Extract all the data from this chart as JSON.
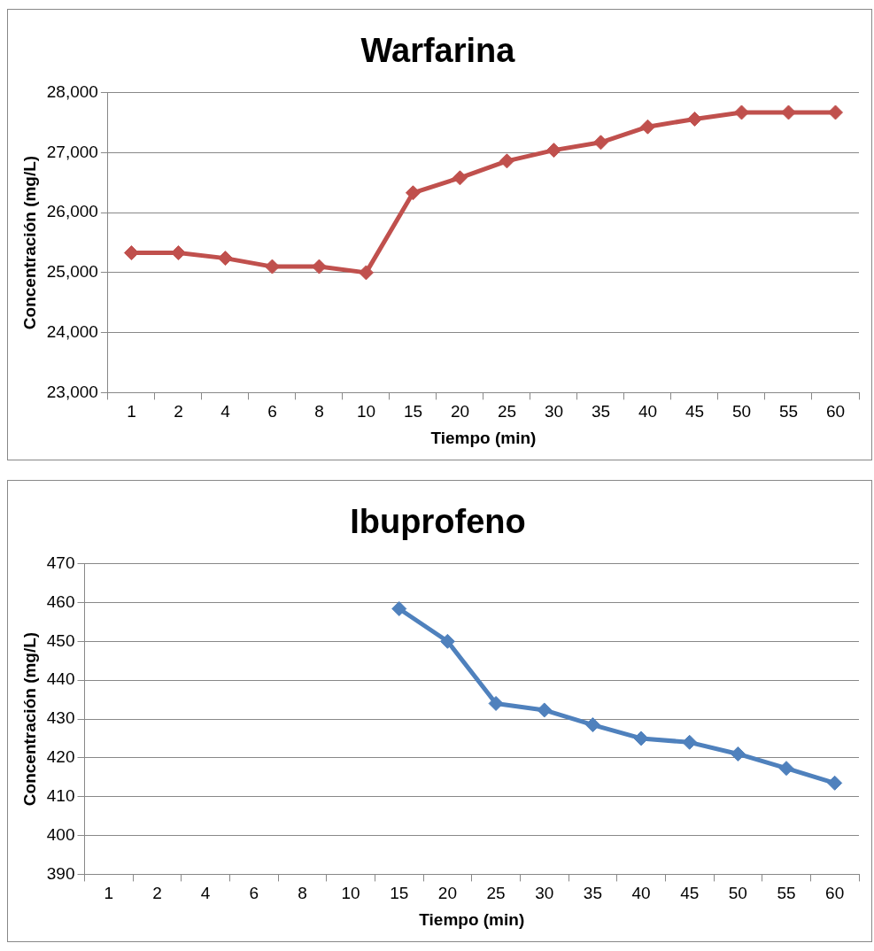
{
  "chart_data": [
    {
      "type": "line",
      "title": "Warfarina",
      "xlabel": "Tiempo (min)",
      "ylabel": "Concentración (mg/L)",
      "categories": [
        "1",
        "2",
        "4",
        "6",
        "8",
        "10",
        "15",
        "20",
        "25",
        "30",
        "35",
        "40",
        "45",
        "50",
        "55",
        "60"
      ],
      "series": [
        {
          "color": "#c0504d",
          "values": [
            25330,
            25330,
            25240,
            25100,
            25100,
            25000,
            26330,
            26580,
            26860,
            27040,
            27170,
            27430,
            27560,
            27670,
            27670,
            27670
          ]
        }
      ],
      "ylim": [
        23000,
        28000
      ],
      "yticks": [
        {
          "value": 23000,
          "label": "23,000"
        },
        {
          "value": 24000,
          "label": "24,000"
        },
        {
          "value": 25000,
          "label": "25,000"
        },
        {
          "value": 26000,
          "label": "26,000"
        },
        {
          "value": 27000,
          "label": "27,000"
        },
        {
          "value": 28000,
          "label": "28,000"
        }
      ],
      "grid": "y",
      "marker": "diamond",
      "line_style": "solid"
    },
    {
      "type": "line",
      "title": "Ibuprofeno",
      "xlabel": "Tiempo (min)",
      "ylabel": "Concentración (mg/L)",
      "categories": [
        "1",
        "2",
        "4",
        "6",
        "8",
        "10",
        "15",
        "20",
        "25",
        "30",
        "35",
        "40",
        "45",
        "50",
        "55",
        "60"
      ],
      "series": [
        {
          "color": "#4f81bd",
          "values": [
            null,
            null,
            null,
            null,
            null,
            null,
            458.4,
            450,
            434,
            432.3,
            428.5,
            425,
            424,
            421,
            417.3,
            413.5
          ]
        }
      ],
      "ylim": [
        390,
        470
      ],
      "yticks": [
        390,
        400,
        410,
        420,
        430,
        440,
        450,
        460,
        470
      ],
      "grid": "y",
      "marker": "diamond",
      "line_style": "solid"
    }
  ]
}
